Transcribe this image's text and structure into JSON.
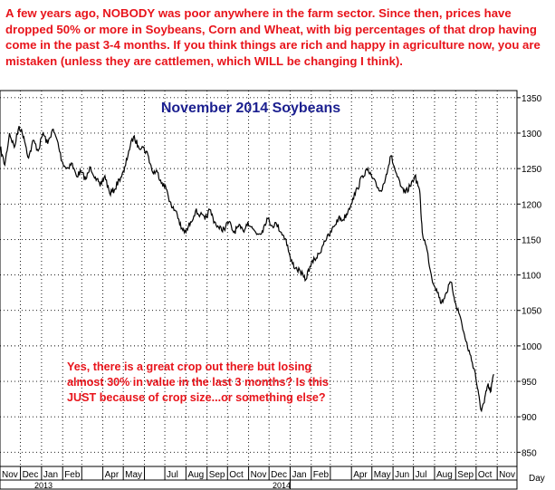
{
  "top_note": {
    "p1": "A few years ago, ",
    "b1": "NOBODY",
    "p2": " was poor anywhere in the farm sector. Since then, prices have dropped 50% or more in Soybeans, Corn and Wheat, with big percentages of that drop having come in the past 3-4 months. If you think things are rich and happy in agriculture now, you are mistaken (unless they are cattlemen, which ",
    "b2": "WILL",
    "p3": " be changing I think)."
  },
  "chart_data": {
    "type": "line",
    "title": "November 2014 Soybeans",
    "annotation": {
      "line1": "Yes, there is a great crop out there but losing",
      "line2": "almost 30% in value in the last 3 months? Is this",
      "line3": "JUST because of crop size...or something else?"
    },
    "x_ticks": [
      "Nov",
      "Dec",
      "Jan",
      "Feb",
      "Apr",
      "May",
      "Jul",
      "Aug",
      "Sep",
      "Oct",
      "Nov",
      "Dec",
      "Jan",
      "Feb",
      "Apr",
      "May",
      "Jun",
      "Jul",
      "Aug",
      "Sep",
      "Oct",
      "Nov"
    ],
    "x_axis_unit": "Day",
    "years": [
      "2013",
      "2014"
    ],
    "y_ticks": [
      850,
      900,
      950,
      1000,
      1050,
      1100,
      1150,
      1200,
      1250,
      1300,
      1350
    ],
    "ylim": [
      830,
      1360
    ],
    "x_range": [
      "2012-11-01",
      "2014-11-30"
    ],
    "grid": true,
    "series": [
      {
        "points": [
          [
            "2012-11-01",
            1280
          ],
          [
            "2012-11-08",
            1255
          ],
          [
            "2012-11-15",
            1300
          ],
          [
            "2012-11-22",
            1280
          ],
          [
            "2012-11-29",
            1310
          ],
          [
            "2012-12-06",
            1295
          ],
          [
            "2012-12-13",
            1265
          ],
          [
            "2012-12-20",
            1290
          ],
          [
            "2012-12-27",
            1275
          ],
          [
            "2013-01-03",
            1300
          ],
          [
            "2013-01-10",
            1285
          ],
          [
            "2013-01-17",
            1305
          ],
          [
            "2013-01-24",
            1290
          ],
          [
            "2013-01-31",
            1260
          ],
          [
            "2013-02-07",
            1250
          ],
          [
            "2013-02-14",
            1258
          ],
          [
            "2013-02-21",
            1240
          ],
          [
            "2013-02-28",
            1245
          ],
          [
            "2013-03-07",
            1235
          ],
          [
            "2013-03-14",
            1252
          ],
          [
            "2013-03-21",
            1238
          ],
          [
            "2013-03-28",
            1225
          ],
          [
            "2013-04-04",
            1240
          ],
          [
            "2013-04-11",
            1215
          ],
          [
            "2013-04-18",
            1220
          ],
          [
            "2013-04-25",
            1235
          ],
          [
            "2013-05-02",
            1245
          ],
          [
            "2013-05-09",
            1275
          ],
          [
            "2013-05-16",
            1295
          ],
          [
            "2013-05-23",
            1282
          ],
          [
            "2013-05-30",
            1280
          ],
          [
            "2013-06-06",
            1270
          ],
          [
            "2013-06-13",
            1245
          ],
          [
            "2013-06-20",
            1245
          ],
          [
            "2013-06-27",
            1230
          ],
          [
            "2013-07-04",
            1220
          ],
          [
            "2013-07-11",
            1195
          ],
          [
            "2013-07-18",
            1190
          ],
          [
            "2013-07-25",
            1165
          ],
          [
            "2013-08-01",
            1160
          ],
          [
            "2013-08-08",
            1175
          ],
          [
            "2013-08-15",
            1190
          ],
          [
            "2013-08-22",
            1185
          ],
          [
            "2013-08-29",
            1178
          ],
          [
            "2013-09-05",
            1192
          ],
          [
            "2013-09-12",
            1175
          ],
          [
            "2013-09-19",
            1165
          ],
          [
            "2013-09-26",
            1165
          ],
          [
            "2013-10-03",
            1175
          ],
          [
            "2013-10-10",
            1160
          ],
          [
            "2013-10-17",
            1168
          ],
          [
            "2013-10-24",
            1162
          ],
          [
            "2013-10-31",
            1175
          ],
          [
            "2013-11-07",
            1165
          ],
          [
            "2013-11-14",
            1158
          ],
          [
            "2013-11-21",
            1162
          ],
          [
            "2013-11-28",
            1180
          ],
          [
            "2013-12-05",
            1170
          ],
          [
            "2013-12-12",
            1172
          ],
          [
            "2013-12-19",
            1160
          ],
          [
            "2013-12-26",
            1150
          ],
          [
            "2014-01-02",
            1120
          ],
          [
            "2014-01-09",
            1110
          ],
          [
            "2014-01-16",
            1105
          ],
          [
            "2014-01-23",
            1092
          ],
          [
            "2014-01-30",
            1112
          ],
          [
            "2014-02-06",
            1122
          ],
          [
            "2014-02-13",
            1130
          ],
          [
            "2014-02-20",
            1148
          ],
          [
            "2014-02-27",
            1155
          ],
          [
            "2014-03-06",
            1168
          ],
          [
            "2014-03-13",
            1180
          ],
          [
            "2014-03-20",
            1178
          ],
          [
            "2014-03-27",
            1190
          ],
          [
            "2014-04-03",
            1208
          ],
          [
            "2014-04-10",
            1222
          ],
          [
            "2014-04-17",
            1240
          ],
          [
            "2014-04-24",
            1248
          ],
          [
            "2014-05-01",
            1238
          ],
          [
            "2014-05-08",
            1225
          ],
          [
            "2014-05-15",
            1218
          ],
          [
            "2014-05-22",
            1242
          ],
          [
            "2014-05-29",
            1268
          ],
          [
            "2014-06-05",
            1245
          ],
          [
            "2014-06-12",
            1225
          ],
          [
            "2014-06-19",
            1215
          ],
          [
            "2014-06-26",
            1225
          ],
          [
            "2014-07-03",
            1240
          ],
          [
            "2014-07-10",
            1220
          ],
          [
            "2014-07-14",
            1160
          ],
          [
            "2014-07-21",
            1135
          ],
          [
            "2014-07-28",
            1095
          ],
          [
            "2014-08-04",
            1080
          ],
          [
            "2014-08-11",
            1060
          ],
          [
            "2014-08-18",
            1075
          ],
          [
            "2014-08-25",
            1090
          ],
          [
            "2014-09-01",
            1060
          ],
          [
            "2014-09-08",
            1040
          ],
          [
            "2014-09-15",
            1010
          ],
          [
            "2014-09-22",
            988
          ],
          [
            "2014-09-29",
            965
          ],
          [
            "2014-10-03",
            940
          ],
          [
            "2014-10-08",
            910
          ],
          [
            "2014-10-13",
            920
          ],
          [
            "2014-10-18",
            945
          ],
          [
            "2014-10-22",
            935
          ],
          [
            "2014-10-27",
            960
          ]
        ]
      }
    ]
  },
  "colors": {
    "note_text": "#e8141b",
    "title_text": "#1b1f8f",
    "annotation_text": "#e8141b",
    "price_line": "#000000",
    "grid": "#000000"
  }
}
